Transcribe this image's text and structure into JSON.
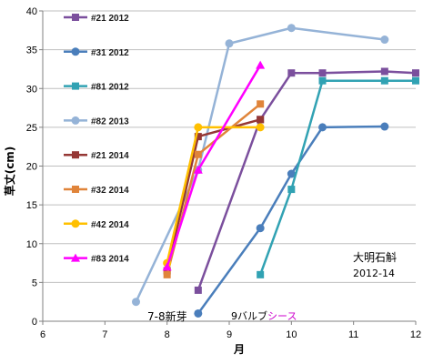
{
  "chart_data": {
    "type": "line",
    "title": "",
    "xlabel": "月",
    "ylabel": "草丈(cm)",
    "xlim": [
      6,
      12
    ],
    "ylim": [
      0,
      40
    ],
    "xticks": [
      6,
      7,
      8,
      9,
      10,
      11,
      12
    ],
    "yticks": [
      0,
      5,
      10,
      15,
      20,
      25,
      30,
      35,
      40
    ],
    "grid": {
      "horizontal": true,
      "vertical": false
    },
    "legend_position": "top-left",
    "series": [
      {
        "name": "#21 2012",
        "color": "#7b4f9d",
        "marker": "square",
        "points": [
          [
            8.5,
            4
          ],
          [
            9.5,
            26
          ],
          [
            10,
            32
          ],
          [
            10.5,
            32
          ],
          [
            11.5,
            32.2
          ],
          [
            12,
            32
          ]
        ]
      },
      {
        "name": "#31 2012",
        "color": "#4a7ebb",
        "marker": "circle",
        "points": [
          [
            8.5,
            1
          ],
          [
            9.5,
            12
          ],
          [
            10,
            19
          ],
          [
            10.5,
            25
          ],
          [
            11.5,
            25.1
          ]
        ]
      },
      {
        "name": "#81 2012",
        "color": "#31a2b3",
        "marker": "square",
        "points": [
          [
            9.5,
            6
          ],
          [
            10,
            17
          ],
          [
            10.5,
            31
          ],
          [
            11.5,
            31
          ],
          [
            12,
            31
          ]
        ]
      },
      {
        "name": "#82 2013",
        "color": "#95b3d7",
        "marker": "circle",
        "points": [
          [
            7.5,
            2.5
          ],
          [
            8.5,
            19.5
          ],
          [
            9,
            35.8
          ],
          [
            10,
            37.8
          ],
          [
            11.5,
            36.3
          ]
        ]
      },
      {
        "name": "#21 2014",
        "color": "#953735",
        "marker": "square",
        "points": [
          [
            8,
            6.5
          ],
          [
            8.5,
            23.8
          ],
          [
            9.5,
            26
          ]
        ]
      },
      {
        "name": "#32 2014",
        "color": "#e0843a",
        "marker": "square",
        "points": [
          [
            8,
            6
          ],
          [
            8.5,
            21.5
          ],
          [
            9.5,
            28
          ]
        ]
      },
      {
        "name": "#42 2014",
        "color": "#ffc000",
        "marker": "circle",
        "points": [
          [
            8,
            7.5
          ],
          [
            8.5,
            25
          ],
          [
            9.5,
            25
          ]
        ]
      },
      {
        "name": "#83 2014",
        "color": "#ff00ff",
        "marker": "triangle",
        "points": [
          [
            8,
            7
          ],
          [
            8.5,
            19.5
          ],
          [
            9.5,
            33
          ]
        ]
      }
    ],
    "annotations": {
      "title_block": [
        "大明石斛",
        "2012-14"
      ],
      "new_buds": "7-8新芽",
      "bulb_sheath_prefix": "9バルブ",
      "bulb_sheath_suffix": "シース"
    },
    "colors": {
      "new_buds": "#1f1fbf",
      "bulb_sheath_suffix": "#cc00cc",
      "gridline": "#bfbfbf",
      "axis": "#808080"
    }
  }
}
